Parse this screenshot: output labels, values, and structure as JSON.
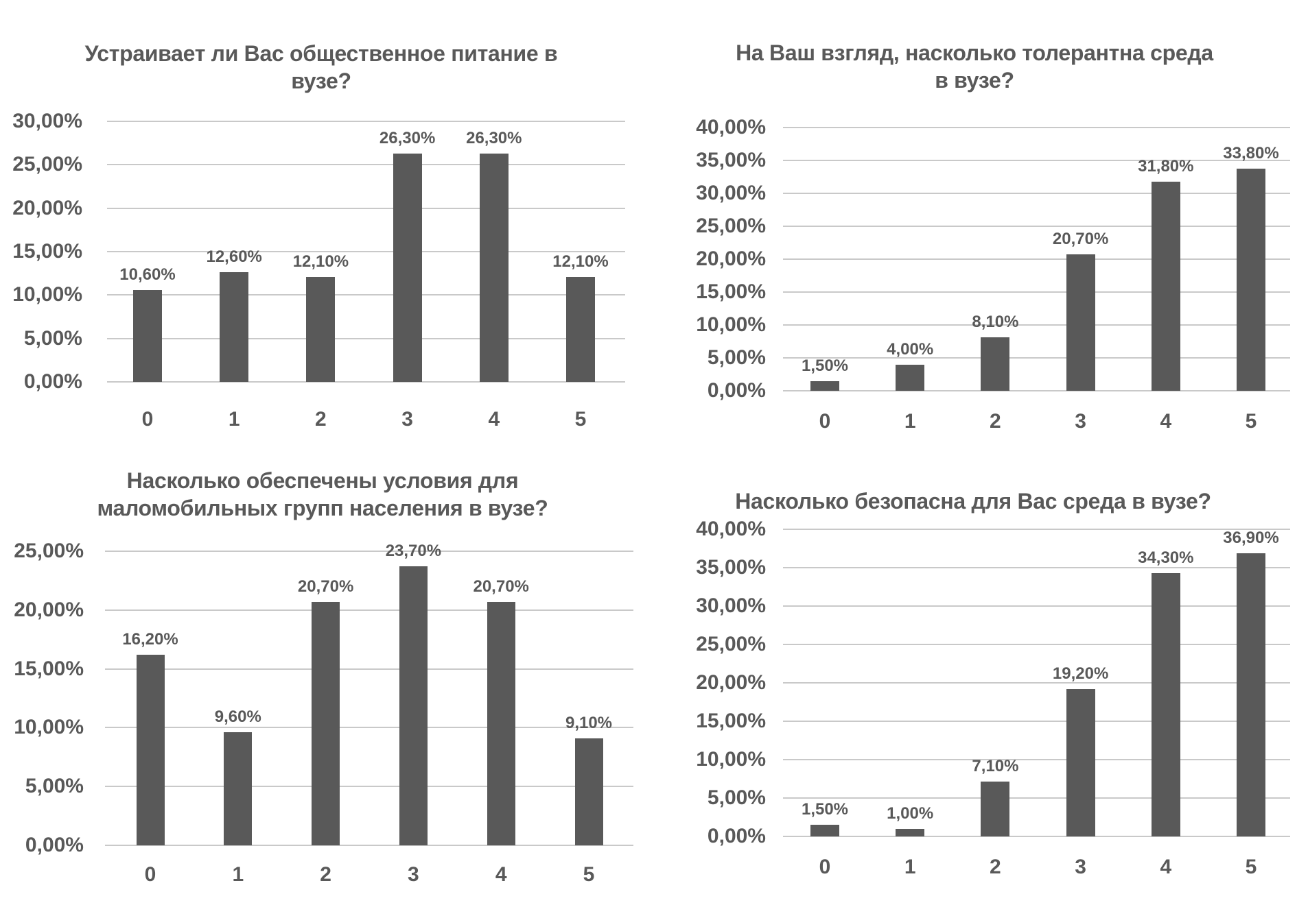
{
  "page": {
    "background": "#ffffff"
  },
  "styles": {
    "bar_color": "#595959",
    "grid_color": "#c9c9c9",
    "text_color": "#595959",
    "background": "#ffffff"
  },
  "chart_data": [
    {
      "type": "bar",
      "title": "Устраивает ли Вас общественное питание в вузе?",
      "title_lines": [
        "Устраивает ли Вас общественное питание в",
        "вузе?"
      ],
      "categories": [
        "0",
        "1",
        "2",
        "3",
        "4",
        "5"
      ],
      "values": [
        10.6,
        12.6,
        12.1,
        26.3,
        26.3,
        12.1
      ],
      "value_labels": [
        "10,60%",
        "12,60%",
        "12,10%",
        "26,30%",
        "26,30%",
        "12,10%"
      ],
      "xlabel": "",
      "ylabel": "",
      "ylim": [
        0,
        30
      ],
      "ytick_step": 5,
      "ytick_labels_top_to_bottom": [
        "30,00%",
        "25,00%",
        "20,00%",
        "15,00%",
        "10,00%",
        "5,00%",
        "0,00%"
      ],
      "grid": true,
      "legend": false,
      "bar_color": "#595959"
    },
    {
      "type": "bar",
      "title": "На Ваш взгляд, насколько толерантна среда в вузе?",
      "title_lines": [
        "На Ваш взгляд, насколько толерантна среда",
        "в вузе?"
      ],
      "categories": [
        "0",
        "1",
        "2",
        "3",
        "4",
        "5"
      ],
      "values": [
        1.5,
        4.0,
        8.1,
        20.7,
        31.8,
        33.8
      ],
      "value_labels": [
        "1,50%",
        "4,00%",
        "8,10%",
        "20,70%",
        "31,80%",
        "33,80%"
      ],
      "xlabel": "",
      "ylabel": "",
      "ylim": [
        0,
        40
      ],
      "ytick_step": 5,
      "ytick_labels_top_to_bottom": [
        "40,00%",
        "35,00%",
        "30,00%",
        "25,00%",
        "20,00%",
        "15,00%",
        "10,00%",
        "5,00%",
        "0,00%"
      ],
      "grid": true,
      "legend": false,
      "bar_color": "#595959"
    },
    {
      "type": "bar",
      "title": "Насколько обеспечены условия для маломобильных групп населения в вузе?",
      "title_lines": [
        "Насколько обеспечены условия для",
        "маломобильных групп населения в вузе?"
      ],
      "categories": [
        "0",
        "1",
        "2",
        "3",
        "4",
        "5"
      ],
      "values": [
        16.2,
        9.6,
        20.7,
        23.7,
        20.7,
        9.1
      ],
      "value_labels": [
        "16,20%",
        "9,60%",
        "20,70%",
        "23,70%",
        "20,70%",
        "9,10%"
      ],
      "xlabel": "",
      "ylabel": "",
      "ylim": [
        0,
        25
      ],
      "ytick_step": 5,
      "ytick_labels_top_to_bottom": [
        "25,00%",
        "20,00%",
        "15,00%",
        "10,00%",
        "5,00%",
        "0,00%"
      ],
      "grid": true,
      "legend": false,
      "bar_color": "#595959"
    },
    {
      "type": "bar",
      "title": "Насколько безопасна для Вас среда в вузе?",
      "title_lines": [
        "Насколько безопасна для Вас среда в вузе?"
      ],
      "categories": [
        "0",
        "1",
        "2",
        "3",
        "4",
        "5"
      ],
      "values": [
        1.5,
        1.0,
        7.1,
        19.2,
        34.3,
        36.9
      ],
      "value_labels": [
        "1,50%",
        "1,00%",
        "7,10%",
        "19,20%",
        "34,30%",
        "36,90%"
      ],
      "xlabel": "",
      "ylabel": "",
      "ylim": [
        0,
        40
      ],
      "ytick_step": 5,
      "ytick_labels_top_to_bottom": [
        "40,00%",
        "35,00%",
        "30,00%",
        "25,00%",
        "20,00%",
        "15,00%",
        "10,00%",
        "5,00%",
        "0,00%"
      ],
      "grid": true,
      "legend": false,
      "bar_color": "#595959"
    }
  ]
}
